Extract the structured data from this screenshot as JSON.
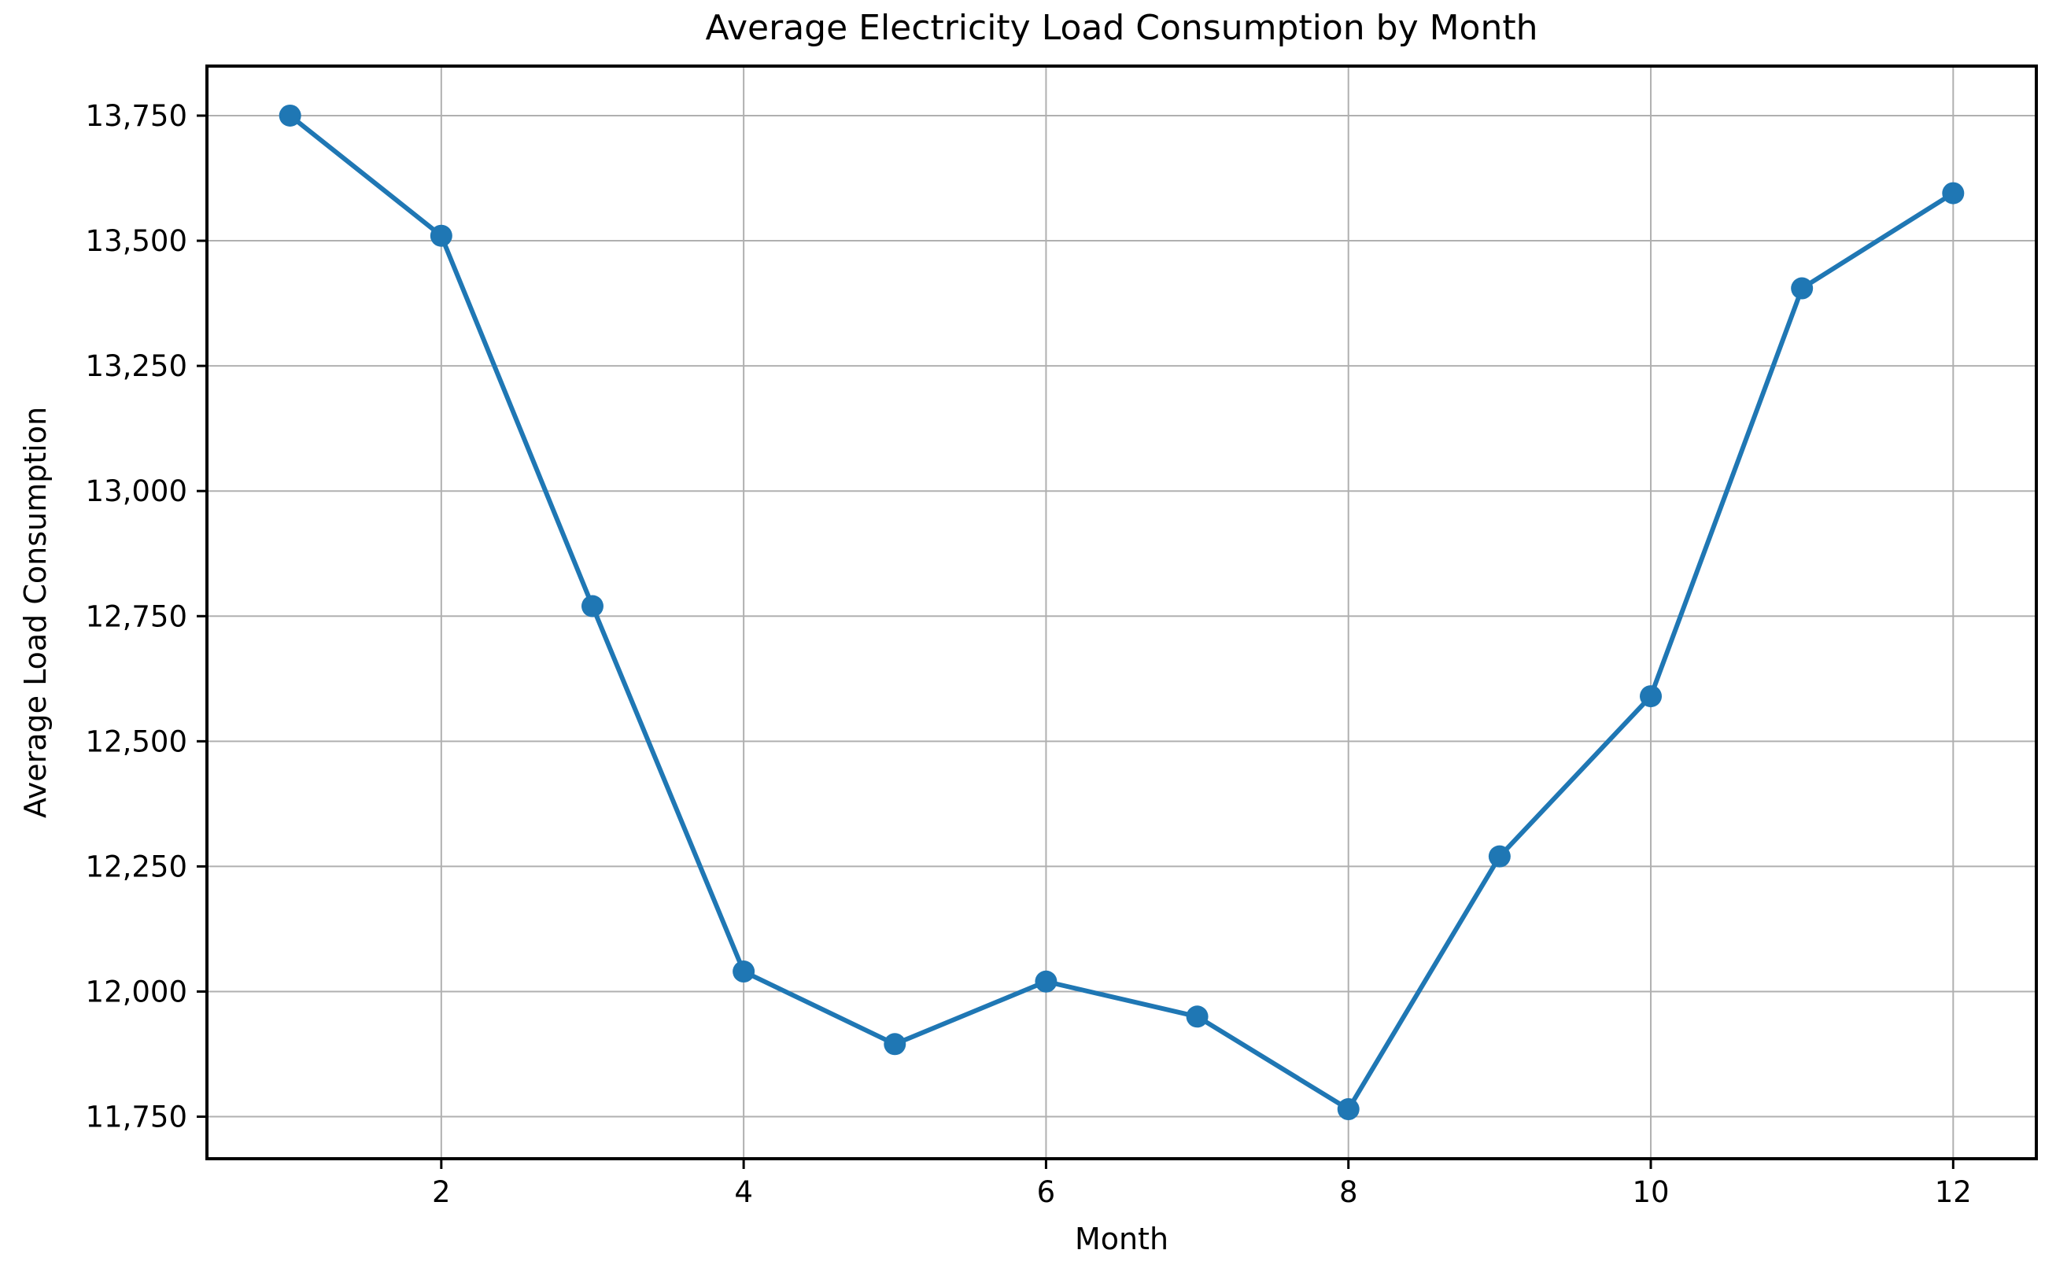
{
  "chart_data": {
    "type": "line",
    "title": "Average Electricity Load Consumption by Month",
    "xlabel": "Month",
    "ylabel": "Average Load Consumption",
    "series": [
      {
        "name": "Average Load Consumption",
        "x": [
          1,
          2,
          3,
          4,
          5,
          6,
          7,
          8,
          9,
          10,
          11,
          12
        ],
        "values": [
          13750,
          13510,
          12770,
          12040,
          11895,
          12020,
          11950,
          11765,
          12270,
          12590,
          13405,
          13595
        ]
      }
    ],
    "x_tick_values": [
      2,
      4,
      6,
      8,
      10,
      12
    ],
    "x_tick_labels": [
      "2",
      "4",
      "6",
      "8",
      "10",
      "12"
    ],
    "y_tick_values": [
      11750,
      12000,
      12250,
      12500,
      12750,
      13000,
      13250,
      13500,
      13750
    ],
    "y_tick_labels": [
      "11,750",
      "12,000",
      "12,250",
      "12,500",
      "12,750",
      "13,000",
      "13,250",
      "13,500",
      "13,750"
    ],
    "xlim": [
      0.45,
      12.55
    ],
    "ylim": [
      11666,
      13849
    ],
    "grid": true,
    "legend_position": "none",
    "colors": {
      "line": "#1f77b4",
      "marker": "#1f77b4",
      "grid": "#b0b0b0",
      "spine": "#000000",
      "text": "#000000",
      "background": "#ffffff"
    },
    "marker": "circle"
  }
}
